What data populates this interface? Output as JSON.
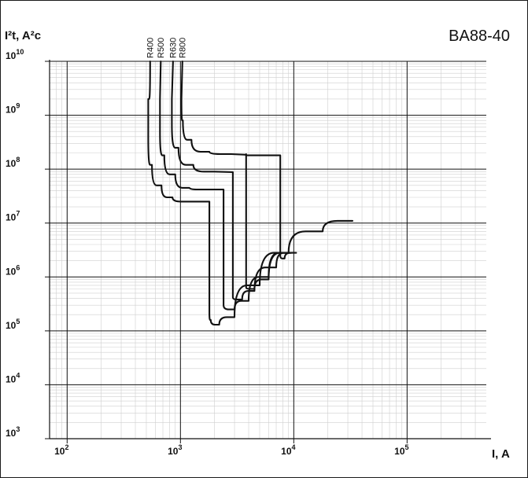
{
  "chart_data": {
    "type": "line",
    "title": "BA88-40",
    "xlabel": "I, A",
    "ylabel": "I²t, A²c",
    "x_scale": "log",
    "y_scale": "log",
    "xlim": [
      70,
      500000
    ],
    "ylim": [
      1000,
      10000000000
    ],
    "x_ticks": [
      {
        "base": "10",
        "exp": "2"
      },
      {
        "base": "10",
        "exp": "3"
      },
      {
        "base": "10",
        "exp": "4"
      },
      {
        "base": "10",
        "exp": "5"
      }
    ],
    "y_ticks": [
      {
        "base": "10",
        "exp": "3"
      },
      {
        "base": "10",
        "exp": "4"
      },
      {
        "base": "10",
        "exp": "5"
      },
      {
        "base": "10",
        "exp": "6"
      },
      {
        "base": "10",
        "exp": "7"
      },
      {
        "base": "10",
        "exp": "8"
      },
      {
        "base": "10",
        "exp": "9"
      },
      {
        "base": "10",
        "exp": "10"
      }
    ],
    "grid": true,
    "series": [
      {
        "name": "R400",
        "points": [
          [
            540,
            10000000000
          ],
          [
            520,
            2000000000
          ],
          [
            520,
            400000000
          ],
          [
            560,
            120000000
          ],
          [
            680,
            50000000
          ],
          [
            850,
            30000000
          ],
          [
            1200,
            25000000
          ],
          [
            1800,
            25000000
          ],
          [
            1800,
            220000
          ],
          [
            1850,
            160000
          ],
          [
            2200,
            130000
          ],
          [
            3000,
            180000
          ],
          [
            5000,
            700000
          ],
          [
            9000,
            2800000
          ],
          [
            18000,
            7000000
          ],
          [
            33000,
            11000000
          ]
        ]
      },
      {
        "name": "R500",
        "points": [
          [
            670,
            10000000000
          ],
          [
            660,
            2000000000
          ],
          [
            660,
            500000000
          ],
          [
            720,
            180000000
          ],
          [
            900,
            80000000
          ],
          [
            1200,
            45000000
          ],
          [
            1700,
            42000000
          ],
          [
            2400,
            42000000
          ],
          [
            2400,
            300000
          ],
          [
            3000,
            250000
          ],
          [
            4000,
            360000
          ],
          [
            6000,
            1000000
          ],
          [
            9000,
            2800000
          ]
        ]
      },
      {
        "name": "R630",
        "points": [
          [
            860,
            10000000000
          ],
          [
            840,
            2000000000
          ],
          [
            840,
            700000000
          ],
          [
            960,
            250000000
          ],
          [
            1300,
            120000000
          ],
          [
            2000,
            90000000
          ],
          [
            2900,
            88000000
          ],
          [
            2900,
            420000
          ],
          [
            3500,
            380000
          ],
          [
            4500,
            550000
          ],
          [
            7000,
            1500000
          ],
          [
            9500,
            2800000
          ]
        ]
      },
      {
        "name": "R800",
        "points": [
          [
            1040,
            10000000000
          ],
          [
            1020,
            2000000000
          ],
          [
            1050,
            800000000
          ],
          [
            1250,
            350000000
          ],
          [
            1800,
            210000000
          ],
          [
            2800,
            190000000
          ],
          [
            3800,
            185000000
          ],
          [
            3800,
            640000
          ],
          [
            4500,
            600000
          ],
          [
            6000,
            900000
          ],
          [
            9500,
            2800000
          ]
        ]
      },
      {
        "name": "",
        "points": [
          [
            3800,
            190000000
          ],
          [
            3800,
            180000000
          ],
          [
            7600,
            180000000
          ],
          [
            7600,
            2500000
          ],
          [
            8300,
            2200000
          ],
          [
            10500,
            2800000
          ]
        ]
      }
    ]
  }
}
